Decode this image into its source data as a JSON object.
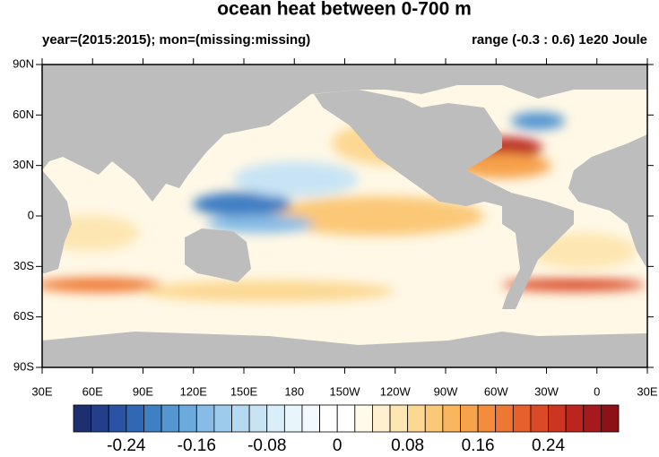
{
  "chart_data": {
    "type": "map",
    "title": "ocean heat between 0-700 m",
    "subtitle_left": "year=(2015:2015); mon=(missing:missing)",
    "subtitle_right": "range (-0.3 : 0.6) 1e20 Joule",
    "xlim": [
      30,
      390
    ],
    "ylim": [
      -90,
      90
    ],
    "xticks": [
      {
        "value": 30,
        "label": "30E"
      },
      {
        "value": 60,
        "label": "60E"
      },
      {
        "value": 90,
        "label": "90E"
      },
      {
        "value": 120,
        "label": "120E"
      },
      {
        "value": 150,
        "label": "150E"
      },
      {
        "value": 180,
        "label": "180"
      },
      {
        "value": 210,
        "label": "150W"
      },
      {
        "value": 240,
        "label": "120W"
      },
      {
        "value": 270,
        "label": "90W"
      },
      {
        "value": 300,
        "label": "60W"
      },
      {
        "value": 330,
        "label": "30W"
      },
      {
        "value": 360,
        "label": "0"
      },
      {
        "value": 390,
        "label": "30E"
      }
    ],
    "yticks": [
      {
        "value": 90,
        "label": "90N"
      },
      {
        "value": 60,
        "label": "60N"
      },
      {
        "value": 30,
        "label": "30N"
      },
      {
        "value": 0,
        "label": "0"
      },
      {
        "value": -30,
        "label": "30S"
      },
      {
        "value": -60,
        "label": "60S"
      },
      {
        "value": -90,
        "label": "90S"
      }
    ],
    "colorbar": {
      "lim": [
        -0.3,
        0.32
      ],
      "ticks": [
        -0.24,
        -0.16,
        -0.08,
        0,
        0.08,
        0.16,
        0.24
      ],
      "colors": [
        "#1d2f6e",
        "#233f8a",
        "#2a53a3",
        "#3168b5",
        "#3f7fc4",
        "#5595d0",
        "#6ca9dc",
        "#86bce5",
        "#9dcbeb",
        "#b4d9f0",
        "#c8e4f4",
        "#d9eef8",
        "#e8f5fb",
        "#f3fafd",
        "#ffffff",
        "#ffffff",
        "#fffaea",
        "#fff1cf",
        "#fde6b1",
        "#fcd893",
        "#fbc877",
        "#f9b65f",
        "#f7a24c",
        "#f38d3d",
        "#ee7733",
        "#e5602c",
        "#db4a26",
        "#cc3522",
        "#bb2520",
        "#a61a1d",
        "#8c1218"
      ]
    }
  }
}
